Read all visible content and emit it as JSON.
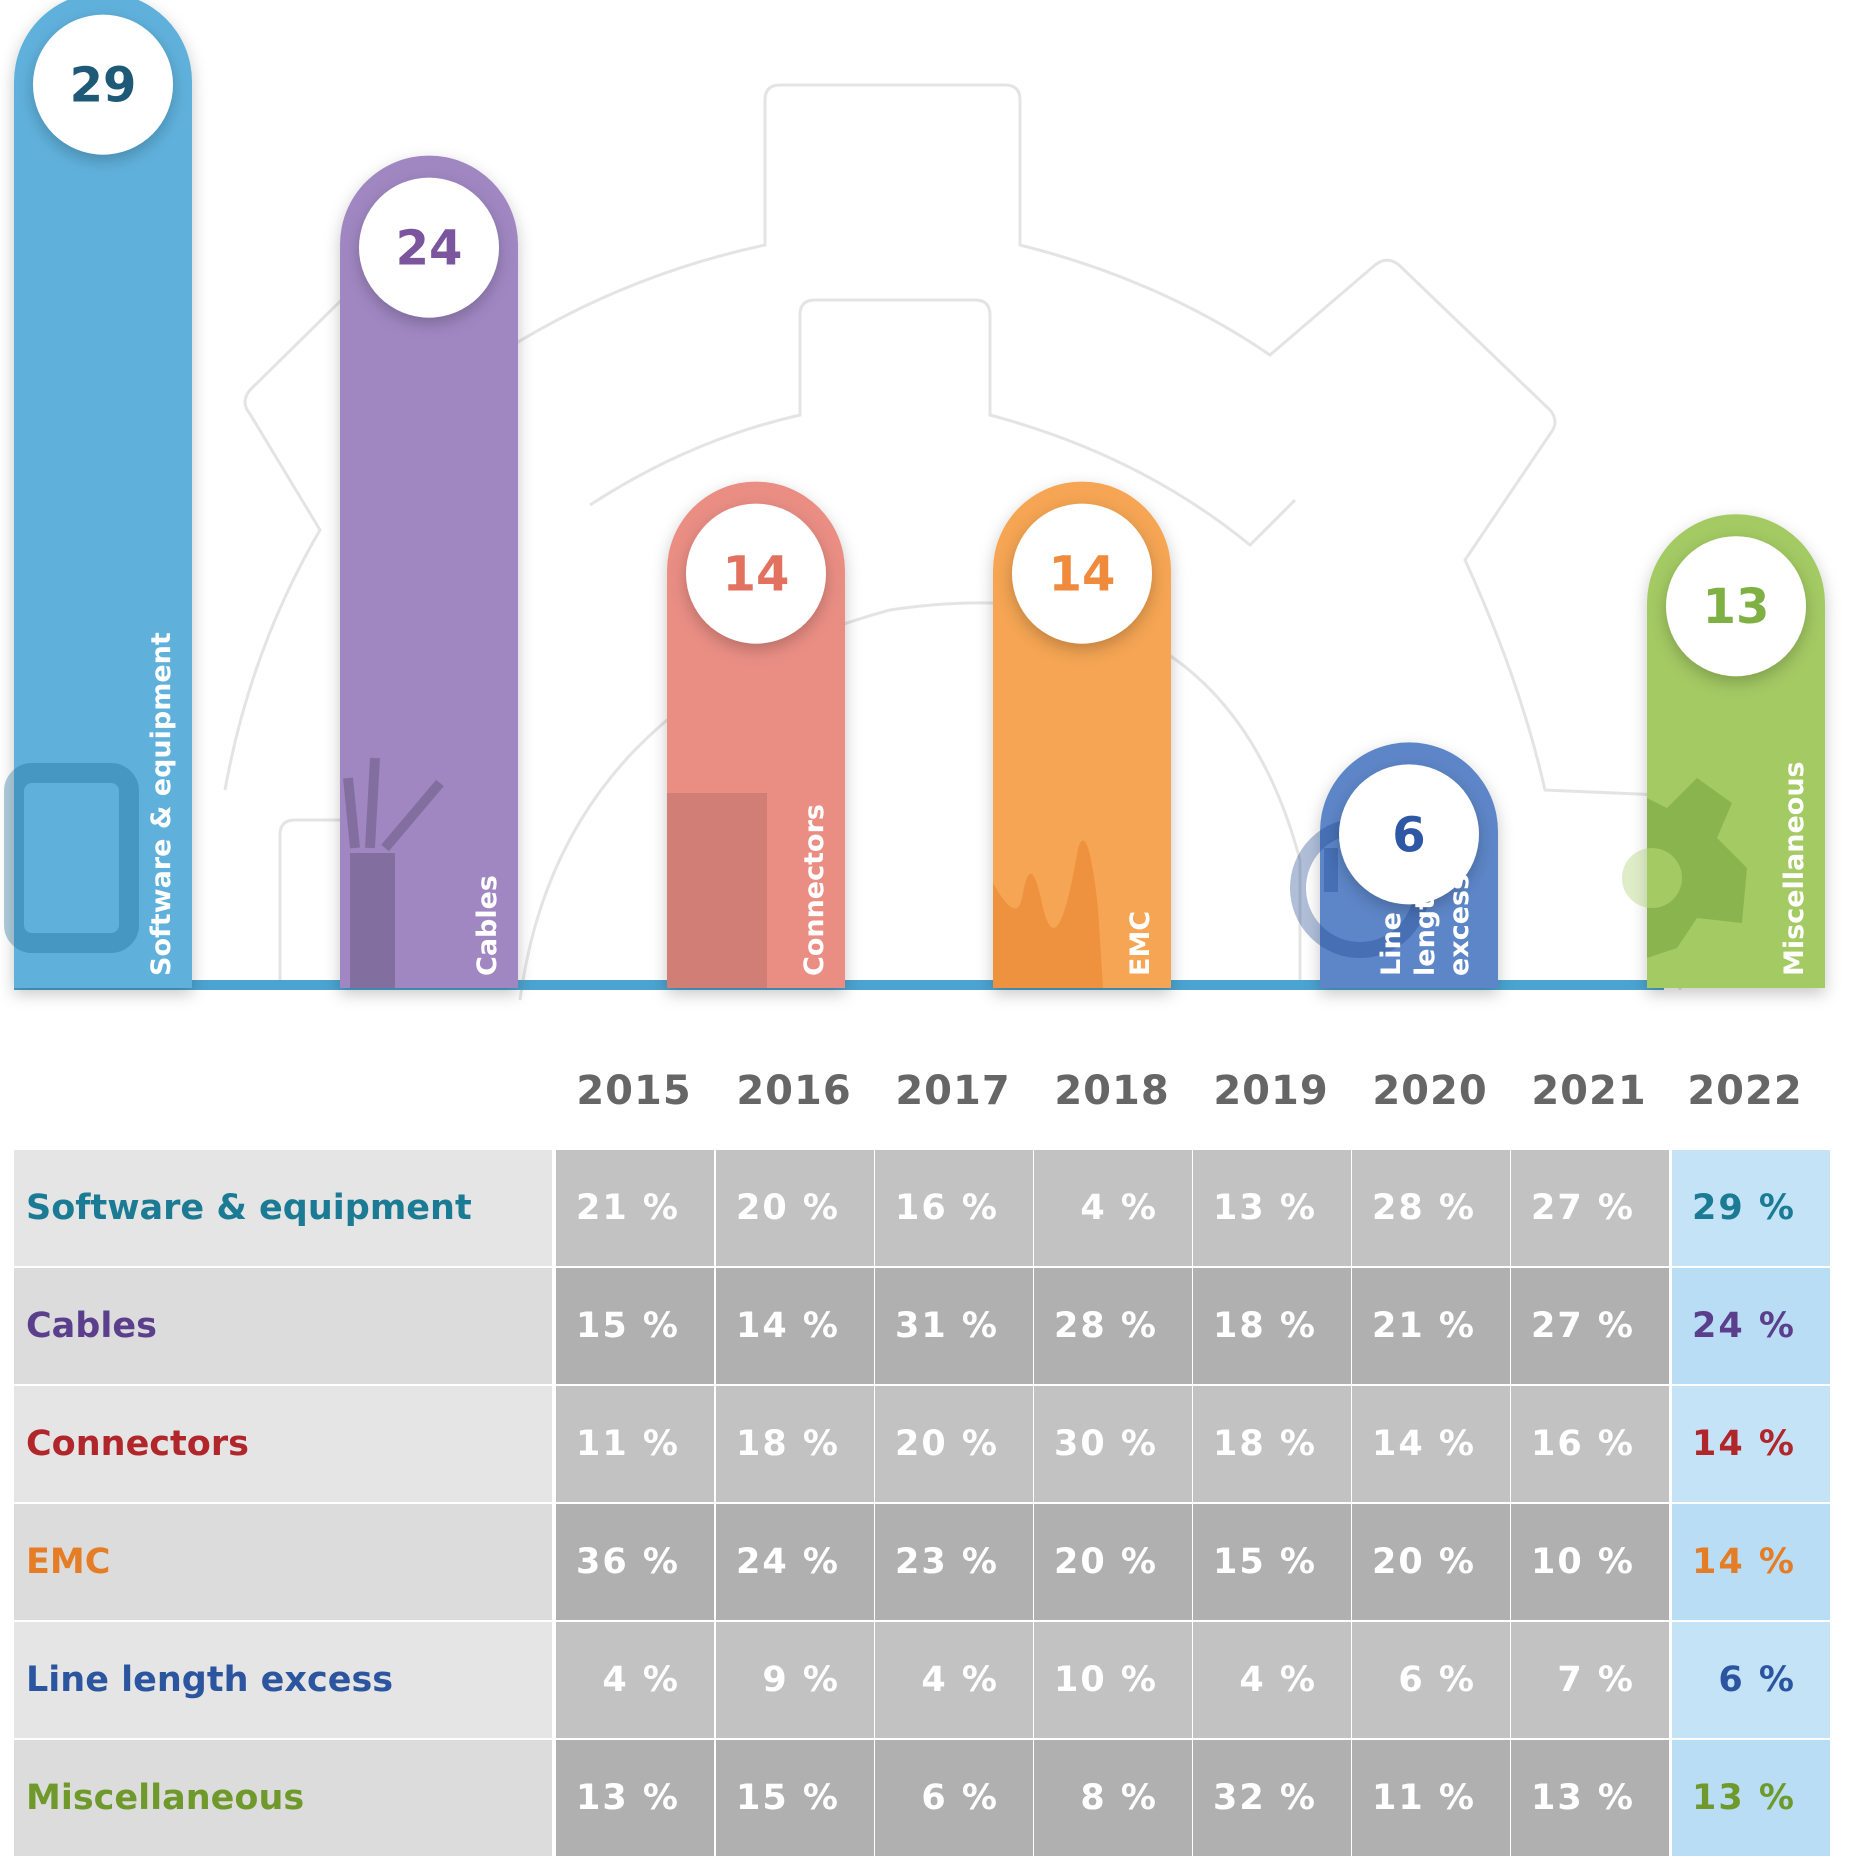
{
  "chart_data": [
    {
      "type": "bar",
      "categories": [
        "Software & equipment",
        "Cables",
        "Connectors",
        "EMC",
        "Line length excess",
        "Miscellaneous"
      ],
      "values": [
        29,
        24,
        14,
        14,
        6,
        13
      ],
      "colors": [
        "#5fb1dc",
        "#a087c2",
        "#ea8e84",
        "#f5a553",
        "#5d86c8",
        "#a3ca63"
      ],
      "value_colors": [
        "#1e5a78",
        "#7b559e",
        "#e2725f",
        "#f08a3c",
        "#2e57a6",
        "#7eb043"
      ],
      "icons": [
        "monitor-icon",
        "cable-icon",
        "connector-icon",
        "signal-wave-icon",
        "warning-icon",
        "gear-icon"
      ]
    },
    {
      "type": "table",
      "years": [
        "2015",
        "2016",
        "2017",
        "2018",
        "2019",
        "2020",
        "2021",
        "2022"
      ],
      "rows": [
        {
          "label": "Software & equipment",
          "color": "#1b7a94",
          "values": [
            "21 %",
            "20 %",
            "16 %",
            "4 %",
            "13 %",
            "28 %",
            "27 %",
            "29 %"
          ]
        },
        {
          "label": "Cables",
          "color": "#5b3f8c",
          "values": [
            "15 %",
            "14 %",
            "31 %",
            "28 %",
            "18 %",
            "21 %",
            "27 %",
            "24 %"
          ]
        },
        {
          "label": "Connectors",
          "color": "#b0262b",
          "values": [
            "11 %",
            "18 %",
            "20 %",
            "30 %",
            "18 %",
            "14 %",
            "16 %",
            "14 %"
          ]
        },
        {
          "label": "EMC",
          "color": "#e57c26",
          "values": [
            "36 %",
            "24 %",
            "23 %",
            "20 %",
            "15 %",
            "20 %",
            "10 %",
            "14 %"
          ]
        },
        {
          "label": "Line length excess",
          "color": "#2c55a0",
          "values": [
            "4 %",
            "9 %",
            "4 %",
            "10 %",
            "4 %",
            "6 %",
            "7 %",
            "6 %"
          ]
        },
        {
          "label": "Miscellaneous",
          "color": "#6f9a2b",
          "values": [
            "13 %",
            "15 %",
            "6 %",
            "8 %",
            "32 %",
            "11 %",
            "13 %",
            "13 %"
          ]
        }
      ]
    }
  ]
}
